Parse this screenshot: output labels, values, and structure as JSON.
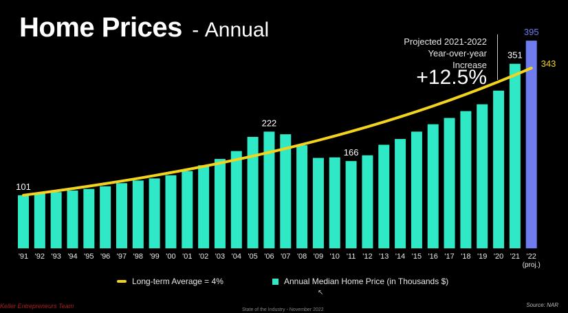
{
  "title": {
    "main": "Home Prices",
    "dash": "-",
    "sub": "Annual"
  },
  "projection": {
    "line1": "Projected 2021-2022",
    "line2": "Year-over-year",
    "line3": "Increase",
    "value": "+12.5%"
  },
  "legend": {
    "avg": "Long-term Average = 4%",
    "bar": "Annual Median Home Price (in Thousands $)"
  },
  "source": "Source: NAR",
  "footer": "State of the Industry - November 2022",
  "brand": "Keller Entrepreneurs Team",
  "colors": {
    "bar": "#2ee8c6",
    "proj_bar": "#6f7cf0",
    "trend": "#f2d41f",
    "background": "#000000"
  },
  "icons": {
    "cursor": "mouse-pointer-icon"
  },
  "chart_data": {
    "type": "bar",
    "categories": [
      "'91",
      "'92",
      "'93",
      "'94",
      "'95",
      "'96",
      "'97",
      "'98",
      "'99",
      "'00",
      "'01",
      "'02",
      "'03",
      "'04",
      "'05",
      "'06",
      "'07",
      "'08",
      "'09",
      "'10",
      "'11",
      "'12",
      "'13",
      "'14",
      "'15",
      "'16",
      "'17",
      "'18",
      "'19",
      "'20",
      "'21",
      "'22"
    ],
    "proj_sub": "(proj.)",
    "values": [
      101,
      104,
      107,
      110,
      113,
      118,
      124,
      129,
      133,
      139,
      147,
      158,
      170,
      185,
      212,
      222,
      217,
      196,
      172,
      173,
      166,
      177,
      197,
      208,
      222,
      236,
      248,
      261,
      274,
      300,
      351,
      395
    ],
    "projected_index": 31,
    "data_labels": [
      {
        "index": 0,
        "text": "101"
      },
      {
        "index": 15,
        "text": "222"
      },
      {
        "index": 20,
        "text": "166"
      },
      {
        "index": 30,
        "text": "351"
      },
      {
        "index": 31,
        "text": "395"
      }
    ],
    "trend": {
      "name": "Long-term Average = 4%",
      "start": 101,
      "end": 343,
      "end_label": "343"
    },
    "ylim": [
      0,
      420
    ],
    "grid": false
  }
}
